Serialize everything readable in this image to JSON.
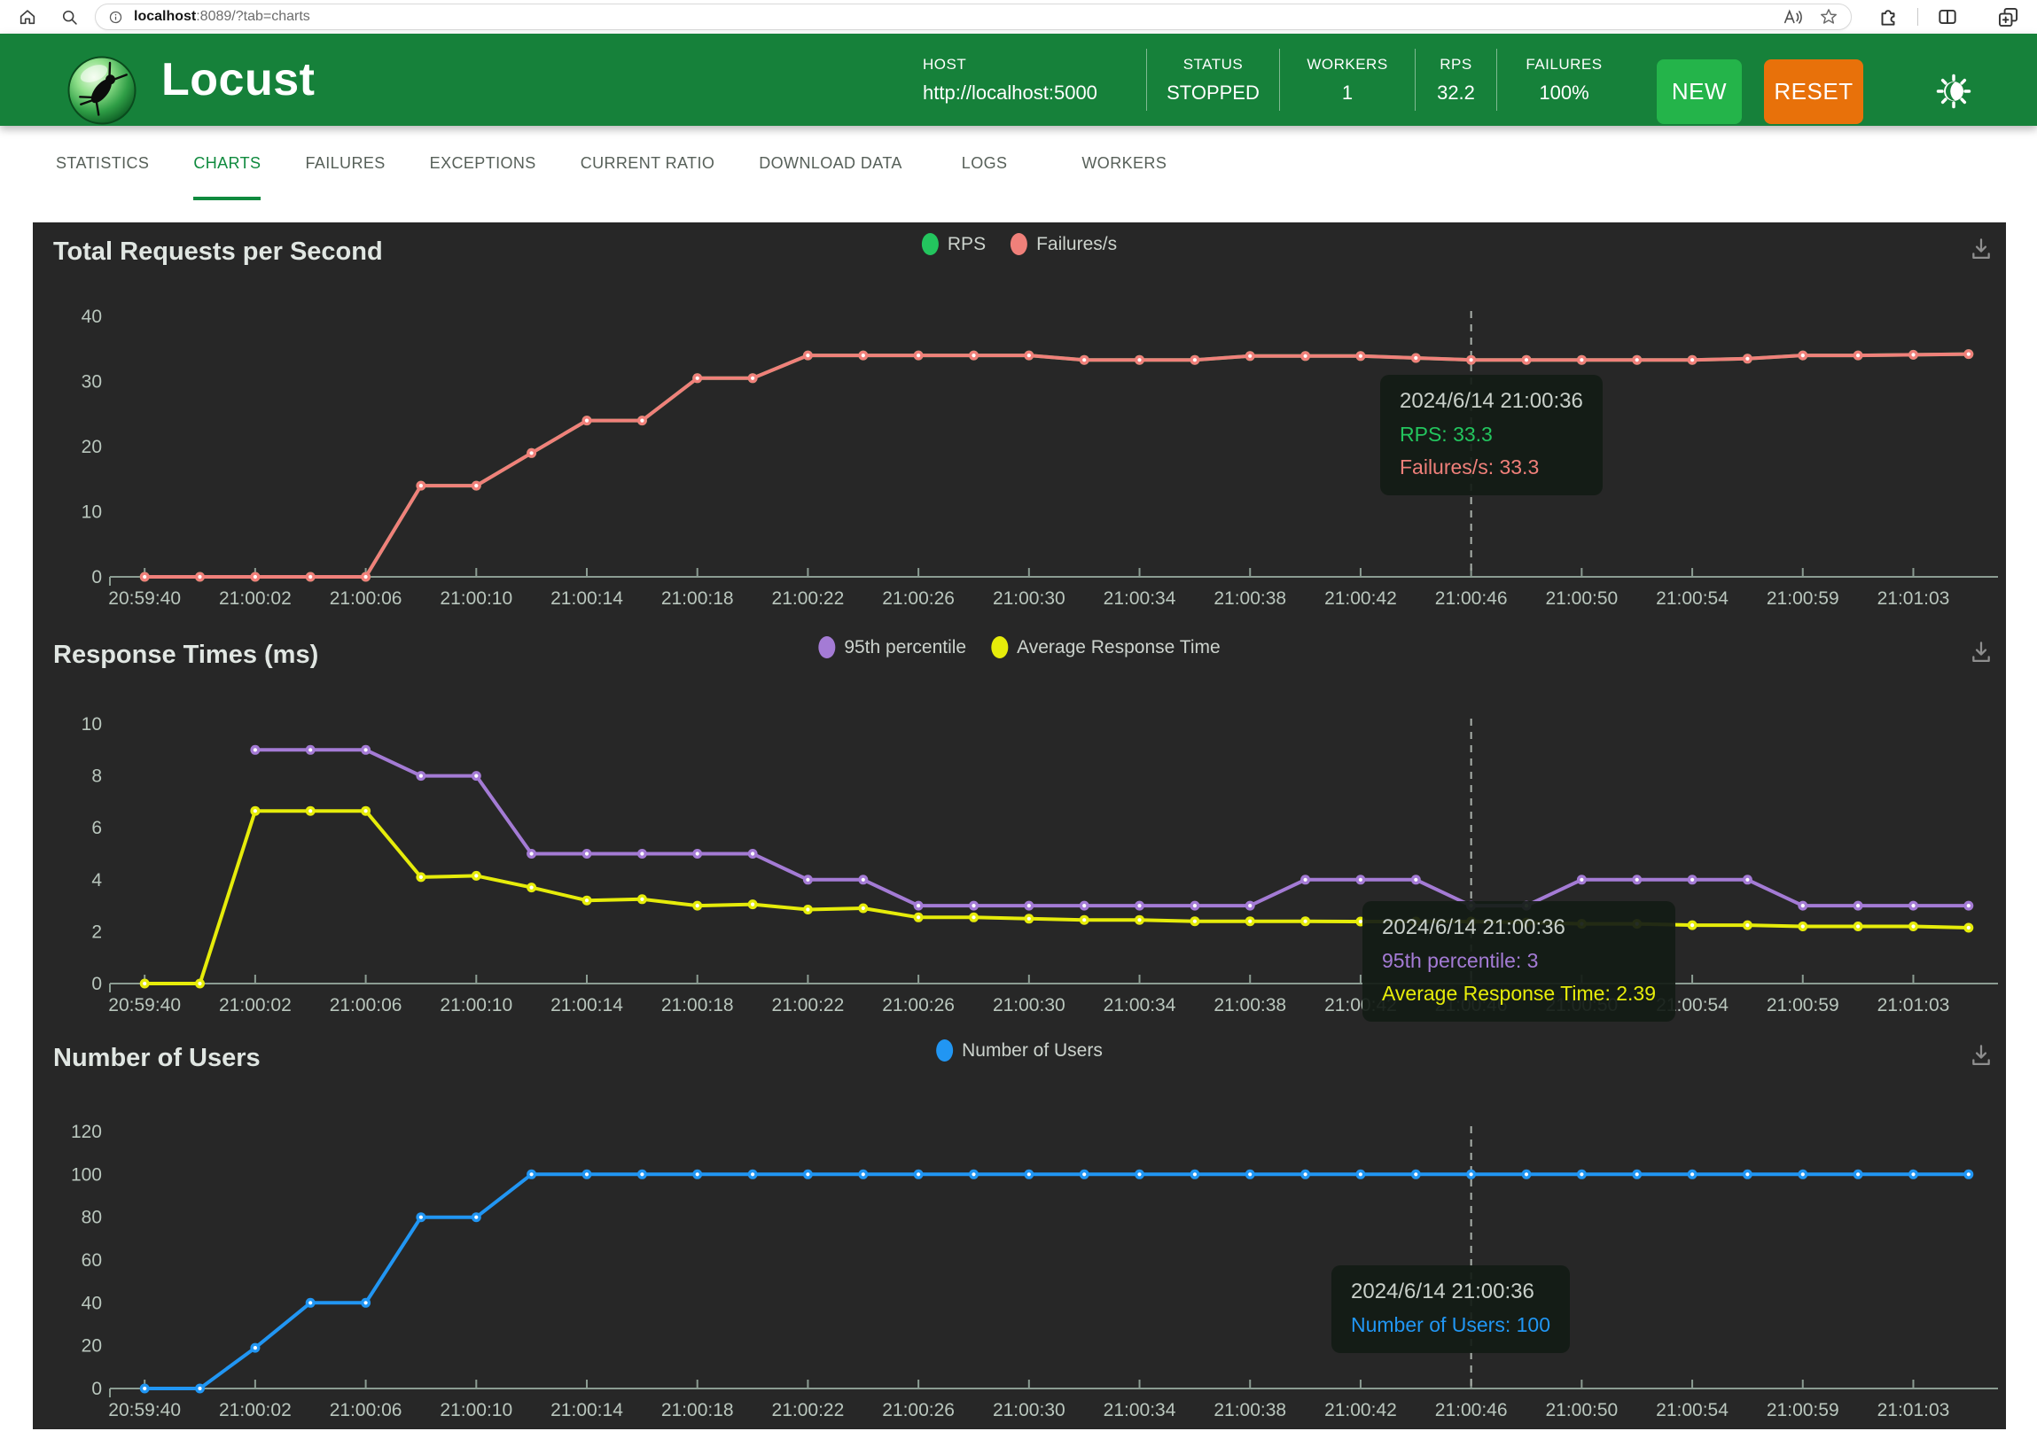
{
  "browser": {
    "url": "localhost:8089/?tab=charts",
    "url_host": "localhost",
    "url_rest": ":8089/?tab=charts"
  },
  "header": {
    "app_name": "Locust",
    "stats": [
      {
        "label": "HOST",
        "value": "http://localhost:5000"
      },
      {
        "label": "STATUS",
        "value": "STOPPED"
      },
      {
        "label": "WORKERS",
        "value": "1"
      },
      {
        "label": "RPS",
        "value": "32.2"
      },
      {
        "label": "FAILURES",
        "value": "100%"
      }
    ],
    "new_button": "NEW",
    "reset_button": "RESET",
    "colors": {
      "header_green": "#16813a",
      "new_green": "#24b44a",
      "reset_orange": "#e8710a"
    }
  },
  "tabs": [
    {
      "label": "STATISTICS",
      "active": false
    },
    {
      "label": "CHARTS",
      "active": true
    },
    {
      "label": "FAILURES",
      "active": false
    },
    {
      "label": "EXCEPTIONS",
      "active": false
    },
    {
      "label": "CURRENT RATIO",
      "active": false
    },
    {
      "label": "DOWNLOAD DATA",
      "active": false
    },
    {
      "label": "LOGS",
      "active": false
    },
    {
      "label": "WORKERS",
      "active": false
    }
  ],
  "chart_data": [
    {
      "type": "line",
      "title": "Total Requests per Second",
      "legend_position": "top",
      "x_tick_labels": [
        "20:59:40",
        "21:00:02",
        "21:00:06",
        "21:00:10",
        "21:00:14",
        "21:00:18",
        "21:00:22",
        "21:00:26",
        "21:00:30",
        "21:00:34",
        "21:00:38",
        "21:00:42",
        "21:00:46",
        "21:00:50",
        "21:00:54",
        "21:00:59",
        "21:01:03"
      ],
      "yticks": [
        0,
        10,
        20,
        30,
        40
      ],
      "ylim": [
        0,
        40
      ],
      "grid": false,
      "series": [
        {
          "name": "RPS",
          "color": "#23c55e",
          "values": [
            0,
            0,
            0,
            0,
            0,
            14,
            14,
            19,
            24,
            24,
            30.5,
            30.5,
            34,
            34,
            34,
            34,
            34,
            33.3,
            33.3,
            33.3,
            33.9,
            33.9,
            33.9,
            33.6,
            33.3,
            33.3,
            33.3,
            33.3,
            33.3,
            33.5,
            34,
            34,
            34.1,
            34.2
          ]
        },
        {
          "name": "Failures/s",
          "color": "#f0807a",
          "values": [
            0,
            0,
            0,
            0,
            0,
            14,
            14,
            19,
            24,
            24,
            30.5,
            30.5,
            34,
            34,
            34,
            34,
            34,
            33.3,
            33.3,
            33.3,
            33.9,
            33.9,
            33.9,
            33.6,
            33.3,
            33.3,
            33.3,
            33.3,
            33.3,
            33.5,
            34,
            34,
            34.1,
            34.2
          ]
        }
      ],
      "hover_index": 24,
      "tooltip": {
        "title": "2024/6/14 21:00:36",
        "lines": [
          {
            "label": "RPS",
            "value": "33.3"
          },
          {
            "label": "Failures/s",
            "value": "33.3"
          }
        ]
      }
    },
    {
      "type": "line",
      "title": "Response Times (ms)",
      "legend_position": "top",
      "x_tick_labels": [
        "20:59:40",
        "21:00:02",
        "21:00:06",
        "21:00:10",
        "21:00:14",
        "21:00:18",
        "21:00:22",
        "21:00:26",
        "21:00:30",
        "21:00:34",
        "21:00:38",
        "21:00:42",
        "21:00:46",
        "21:00:50",
        "21:00:54",
        "21:00:59",
        "21:01:03"
      ],
      "yticks": [
        0,
        2,
        4,
        6,
        8,
        10
      ],
      "ylim": [
        0,
        10
      ],
      "grid": false,
      "series": [
        {
          "name": "95th percentile",
          "color": "#a47bd5",
          "values": [
            null,
            null,
            9,
            9,
            9,
            8,
            8,
            5,
            5,
            5,
            5,
            5,
            4,
            4,
            3,
            3,
            3,
            3,
            3,
            3,
            3,
            4,
            4,
            4,
            3,
            3,
            4,
            4,
            4,
            4,
            3,
            3,
            3,
            3
          ]
        },
        {
          "name": "Average Response Time",
          "color": "#e6ec0a",
          "values": [
            0,
            0,
            6.65,
            6.65,
            6.65,
            4.1,
            4.15,
            3.7,
            3.2,
            3.25,
            3.0,
            3.05,
            2.85,
            2.9,
            2.55,
            2.55,
            2.5,
            2.45,
            2.45,
            2.4,
            2.4,
            2.4,
            2.39,
            2.39,
            2.39,
            2.35,
            2.3,
            2.3,
            2.25,
            2.25,
            2.2,
            2.2,
            2.2,
            2.15
          ]
        }
      ],
      "hover_index": 24,
      "tooltip": {
        "title": "2024/6/14 21:00:36",
        "lines": [
          {
            "label": "95th percentile",
            "value": "3"
          },
          {
            "label": "Average Response Time",
            "value": "2.39"
          }
        ]
      }
    },
    {
      "type": "line",
      "title": "Number of Users",
      "legend_position": "top",
      "x_tick_labels": [
        "20:59:40",
        "21:00:02",
        "21:00:06",
        "21:00:10",
        "21:00:14",
        "21:00:18",
        "21:00:22",
        "21:00:26",
        "21:00:30",
        "21:00:34",
        "21:00:38",
        "21:00:42",
        "21:00:46",
        "21:00:50",
        "21:00:54",
        "21:00:59",
        "21:01:03"
      ],
      "yticks": [
        0,
        20,
        40,
        60,
        80,
        100,
        120
      ],
      "ylim": [
        0,
        120
      ],
      "grid": false,
      "series": [
        {
          "name": "Number of Users",
          "color": "#2196f3",
          "values": [
            0,
            0,
            19,
            40,
            40,
            80,
            80,
            100,
            100,
            100,
            100,
            100,
            100,
            100,
            100,
            100,
            100,
            100,
            100,
            100,
            100,
            100,
            100,
            100,
            100,
            100,
            100,
            100,
            100,
            100,
            100,
            100,
            100,
            100
          ]
        }
      ],
      "hover_index": 24,
      "tooltip": {
        "title": "2024/6/14 21:00:36",
        "lines": [
          {
            "label": "Number of Users",
            "value": "100"
          }
        ]
      }
    }
  ]
}
